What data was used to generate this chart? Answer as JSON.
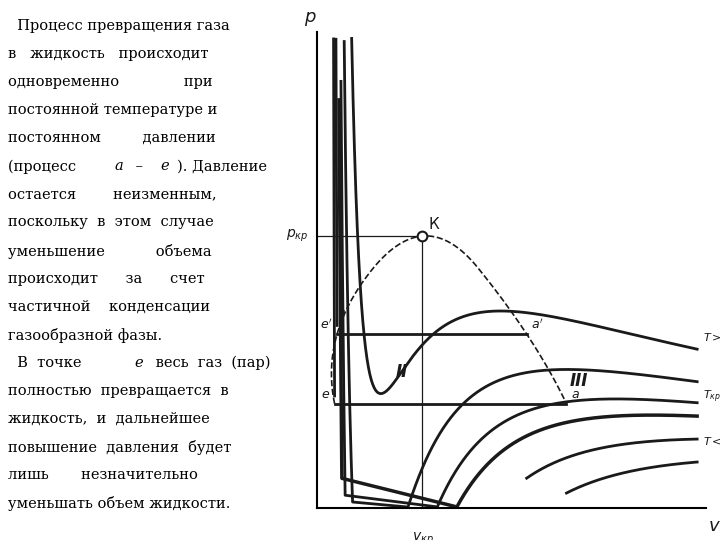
{
  "text_lines": [
    "  Процесс превращения газа",
    "в    жидкость    происходит",
    "одновременно          при",
    "постоянной температуре и",
    "постоянном      давлении",
    "(процесс           ). Давление",
    "остается      неизменным,",
    "поскольку в этом случае",
    "уменьшение         объема",
    "происходит     за     счет",
    "частичной   конденсации",
    "газообразной фазы.",
    "  В точке    весь газ (пар)",
    "полностью превращается в",
    "жидкость,  и  дальнейшее",
    "повышение давления будет",
    "лишь      незначительно",
    "уменьшать объем жидкости."
  ],
  "p_kr": 0.6,
  "v_kr": 0.35,
  "xlim": [
    0.1,
    1.02
  ],
  "ylim": [
    0.0,
    1.05
  ],
  "line_color": "#1a1a1a",
  "lw_isotherm": 2.0,
  "T_factors_above": [
    1.35,
    1.18,
    1.07
  ],
  "T_factor_kr": 1.0,
  "T_factors_below": [
    0.88,
    0.76
  ],
  "region_labels": {
    "I": [
      0.16,
      0.42
    ],
    "II": [
      0.3,
      0.3
    ],
    "III": [
      0.72,
      0.28
    ]
  }
}
